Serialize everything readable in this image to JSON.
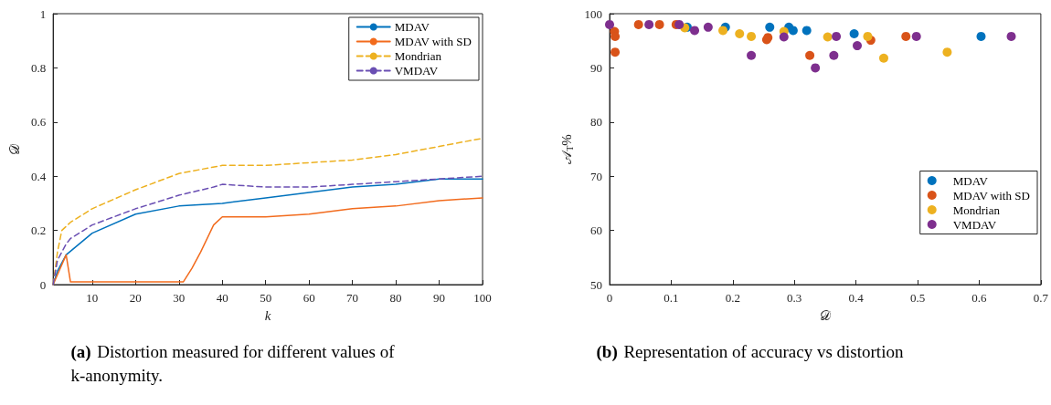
{
  "chart_data": [
    {
      "type": "line",
      "xlabel": "k",
      "ylabel": "𝒟",
      "xlim": [
        1,
        100
      ],
      "xticks": [
        10,
        20,
        30,
        40,
        50,
        60,
        70,
        80,
        90,
        100
      ],
      "ylim": [
        0,
        1
      ],
      "yticks": [
        0,
        0.2,
        0.4,
        0.6,
        0.8,
        1
      ],
      "grid": false,
      "legend": "top right",
      "marker": "none",
      "annotations": [
        "(a) Distortion measured for different values of k-anonymity."
      ],
      "series": [
        {
          "name": "MDAV",
          "color": "#0072bd",
          "line_style": "solid",
          "x": [
            1,
            2,
            4,
            10,
            20,
            30,
            40,
            50,
            60,
            70,
            80,
            90,
            100
          ],
          "values": [
            0,
            0.05,
            0.11,
            0.19,
            0.26,
            0.29,
            0.3,
            0.32,
            0.34,
            0.36,
            0.37,
            0.39,
            0.39
          ]
        },
        {
          "name": "MDAV with SD",
          "color": "#f26b1d",
          "line_style": "solid",
          "x": [
            1,
            4,
            5,
            10,
            20,
            30,
            31,
            33,
            35,
            38,
            40,
            50,
            60,
            70,
            80,
            90,
            100
          ],
          "values": [
            0,
            0.11,
            0.01,
            0.01,
            0.01,
            0.01,
            0.01,
            0.06,
            0.12,
            0.22,
            0.25,
            0.25,
            0.26,
            0.28,
            0.29,
            0.31,
            0.32
          ]
        },
        {
          "name": "Mondrian",
          "color": "#edb120",
          "line_style": "dashed",
          "x": [
            1,
            2,
            3,
            5,
            10,
            20,
            30,
            40,
            50,
            60,
            70,
            80,
            90,
            100
          ],
          "values": [
            0,
            0.12,
            0.2,
            0.23,
            0.28,
            0.35,
            0.41,
            0.44,
            0.44,
            0.45,
            0.46,
            0.48,
            0.51,
            0.54
          ]
        },
        {
          "name": "VMDAV",
          "color": "#6a4fb3",
          "line_style": "dashed",
          "x": [
            1,
            2,
            4,
            5,
            10,
            20,
            30,
            38,
            40,
            50,
            60,
            70,
            80,
            90,
            100
          ],
          "values": [
            0,
            0.09,
            0.15,
            0.17,
            0.22,
            0.28,
            0.33,
            0.36,
            0.37,
            0.36,
            0.36,
            0.37,
            0.38,
            0.39,
            0.4
          ]
        }
      ]
    },
    {
      "type": "scatter",
      "xlabel": "𝒟",
      "ylabel": "𝒜$_{T}$%",
      "xlim": [
        0,
        0.7
      ],
      "xticks": [
        0,
        0.1,
        0.2,
        0.3,
        0.4,
        0.5,
        0.6,
        0.7
      ],
      "ylim": [
        50,
        100
      ],
      "yticks": [
        50,
        60,
        70,
        80,
        90,
        100
      ],
      "grid": false,
      "legend": "right",
      "marker": "circle",
      "annotations": [
        "(b) Representation of accuracy vs distortion"
      ],
      "series": [
        {
          "name": "MDAV",
          "color": "#0072bd",
          "x": [
            0.126,
            0.188,
            0.26,
            0.291,
            0.298,
            0.32,
            0.397,
            0.603
          ],
          "values": [
            97.5,
            97.5,
            97.5,
            97.5,
            96.9,
            96.9,
            96.3,
            95.8
          ]
        },
        {
          "name": "MDAV with SD",
          "color": "#d95319",
          "x": [
            0.008,
            0.009,
            0.009,
            0.047,
            0.081,
            0.108,
            0.255,
            0.257,
            0.325,
            0.424,
            0.481
          ],
          "values": [
            96.7,
            95.8,
            92.9,
            98,
            98,
            98,
            95.2,
            95.6,
            92.3,
            95.1,
            95.8
          ]
        },
        {
          "name": "Mondrian",
          "color": "#edb120",
          "x": [
            0.122,
            0.184,
            0.211,
            0.23,
            0.283,
            0.354,
            0.419,
            0.445,
            0.548
          ],
          "values": [
            97.4,
            96.9,
            96.3,
            95.8,
            96.7,
            95.7,
            95.8,
            91.8,
            92.9
          ]
        },
        {
          "name": "VMDAV",
          "color": "#7e2f8e",
          "x": [
            0,
            0.064,
            0.113,
            0.138,
            0.16,
            0.23,
            0.283,
            0.334,
            0.364,
            0.368,
            0.402,
            0.498,
            0.652
          ],
          "values": [
            98,
            98,
            98,
            96.9,
            97.5,
            92.3,
            95.7,
            90,
            92.3,
            95.8,
            94.1,
            95.8,
            95.8
          ]
        }
      ]
    }
  ]
}
